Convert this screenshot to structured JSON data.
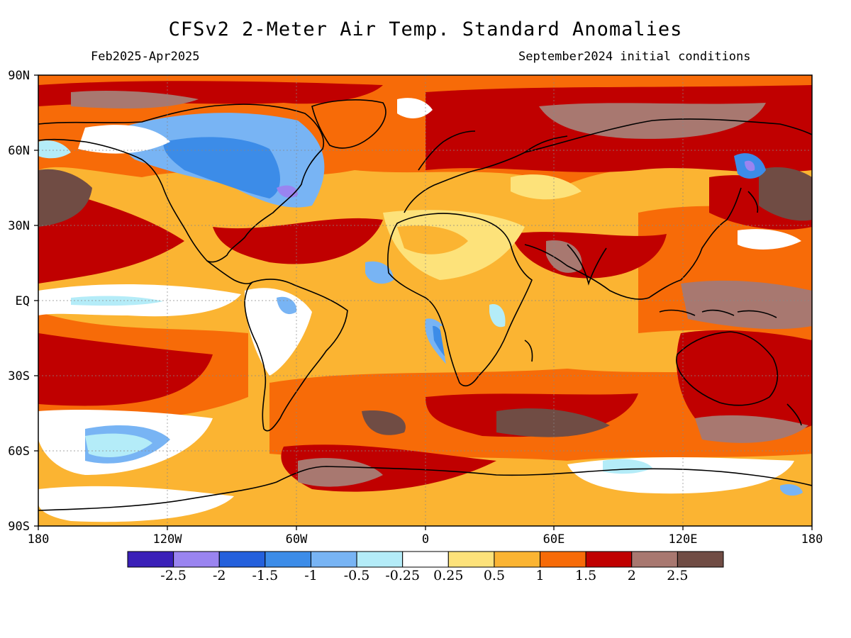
{
  "header": {
    "title": "CFSv2 2-Meter Air Temp. Standard Anomalies",
    "period": "Feb2025-Apr2025",
    "initial_conditions": "September2024 initial conditions"
  },
  "axes": {
    "lat_labels": [
      "90N",
      "60N",
      "30N",
      "EQ",
      "30S",
      "60S",
      "90S"
    ],
    "lon_labels": [
      "180",
      "120W",
      "60W",
      "0",
      "60E",
      "120E",
      "180"
    ]
  },
  "legend": {
    "colors": [
      "#3a20b8",
      "#9a84f0",
      "#2460dc",
      "#3c8ce8",
      "#78b4f4",
      "#b4ecf8",
      "#ffffff",
      "#fde27a",
      "#fbb432",
      "#f76b08",
      "#c00000",
      "#a87870",
      "#704c44"
    ],
    "labels": [
      "-2.5",
      "-2",
      "-1.5",
      "-1",
      "-0.5",
      "-0.25",
      "0.25",
      "0.5",
      "1",
      "1.5",
      "2",
      "2.5"
    ]
  },
  "map_colors": {
    "ocean_base": "#fbb432",
    "land_base": "#fbb432",
    "coast": "#000000"
  }
}
